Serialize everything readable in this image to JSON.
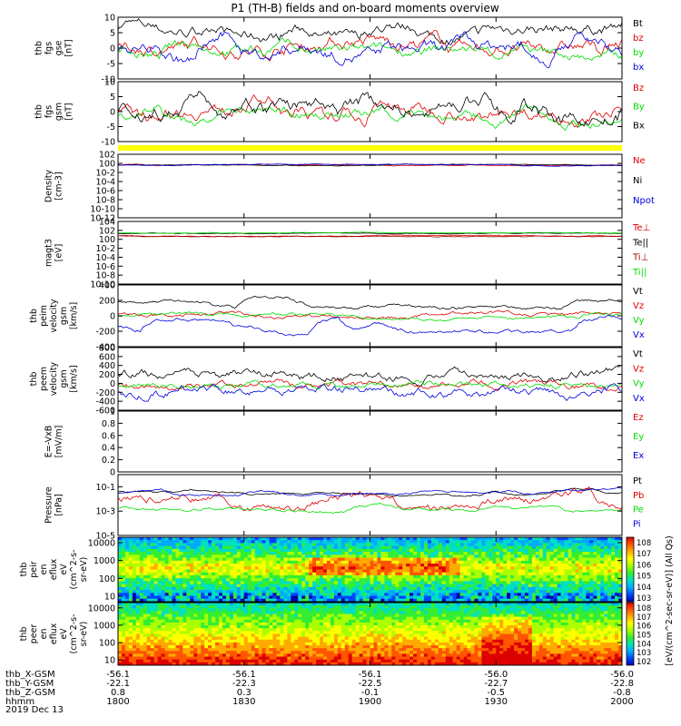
{
  "title": "P1 (TH-B) fields and on-board moments overview",
  "date_label": "2019 Dec 13",
  "time_axis": {
    "rows": [
      {
        "label": "thb_X-GSM",
        "values": [
          "-56.1",
          "-56.1",
          "-56.1",
          "-56.0",
          "-56.0"
        ]
      },
      {
        "label": "thb_Y-GSM",
        "values": [
          "-22.1",
          "-22.3",
          "-22.5",
          "-22.7",
          "-22.8"
        ]
      },
      {
        "label": "thb_Z-GSM",
        "values": [
          "0.8",
          "0.3",
          "-0.1",
          "-0.5",
          "-0.8"
        ]
      },
      {
        "label": "hhmm",
        "values": [
          "1800",
          "1830",
          "1900",
          "1930",
          "2000"
        ]
      }
    ]
  },
  "colorbar": {
    "label": "[eV/(cm^2-sec-sr-eV)] (All Qs)",
    "upper_ticks": [
      "10^8",
      "10^7",
      "10^6",
      "10^5",
      "10^4",
      "10^3"
    ],
    "lower_ticks": [
      "10^8",
      "10^7",
      "10^6",
      "10^5",
      "10^4",
      "10^3",
      "10^2"
    ]
  },
  "colors": {
    "black": "#000000",
    "red": "#dd0000",
    "green": "#00dd00",
    "blue": "#0000dd",
    "yellow": "#ffff00",
    "darkred": "#990000"
  },
  "chart_data": [
    {
      "type": "line",
      "panel": "fgs_gse",
      "ylabel": [
        "thb",
        "fgs",
        "gse",
        "[nT]"
      ],
      "ylim": [
        -10,
        10
      ],
      "yticks": [
        -10,
        -5,
        0,
        5,
        10
      ],
      "series": [
        {
          "name": "Bt",
          "color": "black"
        },
        {
          "name": "bz",
          "color": "red"
        },
        {
          "name": "by",
          "color": "green"
        },
        {
          "name": "bx",
          "color": "blue"
        }
      ]
    },
    {
      "type": "line",
      "panel": "fgs_gsm",
      "ylabel": [
        "thb",
        "fgs",
        "gsm",
        "[nT]"
      ],
      "ylim": [
        -10,
        10
      ],
      "yticks": [
        -10,
        -5,
        0,
        5,
        10
      ],
      "series": [
        {
          "name": "Bz",
          "color": "red"
        },
        {
          "name": "By",
          "color": "green"
        },
        {
          "name": "Bx",
          "color": "black"
        }
      ]
    },
    {
      "type": "line",
      "panel": "density",
      "ylabel": [
        "Density",
        "[cm-3]"
      ],
      "ylim": [
        -12,
        2
      ],
      "log": true,
      "yticks": [
        "10^2",
        "10^0",
        "10^-2",
        "10^-4",
        "10^-6",
        "10^-8",
        "10^-10",
        "10^-12"
      ],
      "series": [
        {
          "name": "Ne",
          "color": "red"
        },
        {
          "name": "Ni",
          "color": "black"
        },
        {
          "name": "Npot",
          "color": "blue"
        }
      ]
    },
    {
      "type": "line",
      "panel": "temperature",
      "ylabel": [
        "magt3",
        "[eV]"
      ],
      "ylim": [
        -10,
        4
      ],
      "log": true,
      "yticks": [
        "10^4",
        "10^2",
        "10^0",
        "10^-2",
        "10^-4",
        "10^-6",
        "10^-8",
        "10^-10"
      ],
      "series": [
        {
          "name": "Te⊥",
          "color": "red"
        },
        {
          "name": "Te||",
          "color": "black"
        },
        {
          "name": "Ti⊥",
          "color": "darkred"
        },
        {
          "name": "Ti||",
          "color": "green"
        }
      ]
    },
    {
      "type": "line",
      "panel": "peim_velocity",
      "ylabel": [
        "thb",
        "peim",
        "velocity",
        "gsm",
        "[km/s]"
      ],
      "ylim": [
        -400,
        400
      ],
      "yticks": [
        -400,
        -200,
        0,
        200,
        400
      ],
      "series": [
        {
          "name": "Vt",
          "color": "black"
        },
        {
          "name": "Vz",
          "color": "red"
        },
        {
          "name": "Vy",
          "color": "green"
        },
        {
          "name": "Vx",
          "color": "blue"
        }
      ]
    },
    {
      "type": "line",
      "panel": "peem_velocity",
      "ylabel": [
        "thb",
        "peem",
        "velocity",
        "gsm",
        "[km/s]"
      ],
      "ylim": [
        -600,
        800
      ],
      "yticks": [
        -600,
        -400,
        -200,
        0,
        200,
        400,
        600,
        800
      ],
      "series": [
        {
          "name": "Vt",
          "color": "black"
        },
        {
          "name": "Vz",
          "color": "red"
        },
        {
          "name": "Vy",
          "color": "green"
        },
        {
          "name": "Vx",
          "color": "blue"
        }
      ]
    },
    {
      "type": "line",
      "panel": "efield",
      "ylabel": [
        "E=-VxB",
        "[mV/m]"
      ],
      "ylim": [
        0,
        1
      ],
      "yticks": [
        0.0,
        0.2,
        0.4,
        0.6,
        0.8,
        1.0
      ],
      "series": [
        {
          "name": "Ez",
          "color": "red"
        },
        {
          "name": "Ey",
          "color": "green"
        },
        {
          "name": "Ex",
          "color": "blue"
        }
      ]
    },
    {
      "type": "line",
      "panel": "pressure",
      "ylabel": [
        "Pressure",
        "[nPa]"
      ],
      "ylim": [
        -5,
        0
      ],
      "log": true,
      "yticks": [
        "10^-1",
        "10^-3",
        "10^-5"
      ],
      "series": [
        {
          "name": "Pt",
          "color": "black"
        },
        {
          "name": "Pb",
          "color": "red"
        },
        {
          "name": "Pe",
          "color": "green"
        },
        {
          "name": "Pi",
          "color": "blue"
        }
      ]
    },
    {
      "type": "heatmap",
      "panel": "peir_spec",
      "ylabel": [
        "thb",
        "peir",
        "en",
        "eflux",
        "eV",
        "(cm^2-s-",
        "sr-eV)"
      ],
      "ylim": [
        5,
        20000
      ],
      "log": true,
      "yticks": [
        "10000",
        "1000",
        "100",
        "10"
      ]
    },
    {
      "type": "heatmap",
      "panel": "peer_spec",
      "ylabel": [
        "thb",
        "peer",
        "en",
        "eflux",
        "eV",
        "(cm^2-s-",
        "sr-eV)"
      ],
      "ylim": [
        5,
        20000
      ],
      "log": true,
      "yticks": [
        "10000",
        "1000",
        "100",
        "10"
      ]
    }
  ]
}
